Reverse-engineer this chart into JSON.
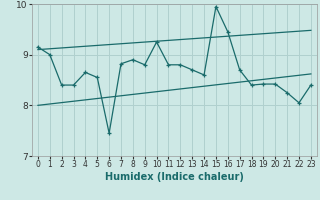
{
  "xlabel": "Humidex (Indice chaleur)",
  "xlim": [
    -0.5,
    23.5
  ],
  "ylim": [
    7,
    10
  ],
  "yticks": [
    7,
    8,
    9,
    10
  ],
  "xticks": [
    0,
    1,
    2,
    3,
    4,
    5,
    6,
    7,
    8,
    9,
    10,
    11,
    12,
    13,
    14,
    15,
    16,
    17,
    18,
    19,
    20,
    21,
    22,
    23
  ],
  "background_color": "#cde8e5",
  "grid_color": "#b0d0ce",
  "line_color": "#1a6b6b",
  "series1_x": [
    0,
    1,
    2,
    3,
    4,
    5,
    6,
    7,
    8,
    9,
    10,
    11,
    12,
    13,
    14,
    15,
    16,
    17,
    18,
    19,
    20,
    21,
    22,
    23
  ],
  "series1_y": [
    9.15,
    9.0,
    8.4,
    8.4,
    8.65,
    8.55,
    7.45,
    8.82,
    8.9,
    8.8,
    9.25,
    8.8,
    8.8,
    8.7,
    8.6,
    9.95,
    9.45,
    8.7,
    8.4,
    8.42,
    8.42,
    8.25,
    8.05,
    8.4
  ],
  "series2_x": [
    0,
    23
  ],
  "series2_y": [
    9.1,
    9.48
  ],
  "series3_x": [
    0,
    23
  ],
  "series3_y": [
    8.0,
    8.62
  ]
}
